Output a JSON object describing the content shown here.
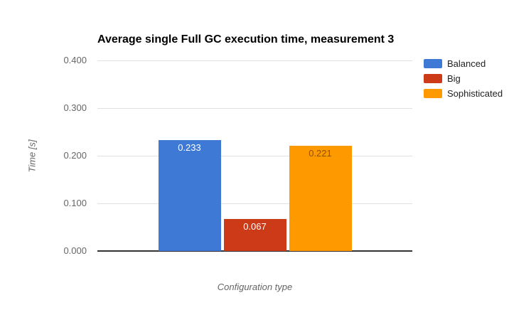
{
  "chart_data": {
    "type": "bar",
    "title": "Average single Full GC execution time, measurement 3",
    "xlabel": "Configuration type",
    "ylabel": "Time [s]",
    "ylim": [
      0,
      0.4
    ],
    "grid": true,
    "legend_position": "right",
    "yticks": [
      {
        "value": 0.4,
        "label": "0.400"
      },
      {
        "value": 0.3,
        "label": "0.300"
      },
      {
        "value": 0.2,
        "label": "0.200"
      },
      {
        "value": 0.1,
        "label": "0.100"
      },
      {
        "value": 0.0,
        "label": "0.000"
      }
    ],
    "series": [
      {
        "name": "Balanced",
        "value": 0.233,
        "label": "0.233",
        "color": "#3E79D6",
        "label_color": "#ffffff"
      },
      {
        "name": "Big",
        "value": 0.067,
        "label": "0.067",
        "color": "#CC3A17",
        "label_color": "#ffffff"
      },
      {
        "name": "Sophisticated",
        "value": 0.221,
        "label": "0.221",
        "color": "#FE9900",
        "label_color": "#8F5400"
      }
    ],
    "style": {
      "gridline_color": "#e0e0e0",
      "baseline_color": "#333333",
      "tick_label_color": "#666666",
      "axis_title_color": "#666666",
      "legend_text_color": "#222222",
      "title_color": "#000000",
      "background": "#ffffff"
    }
  }
}
